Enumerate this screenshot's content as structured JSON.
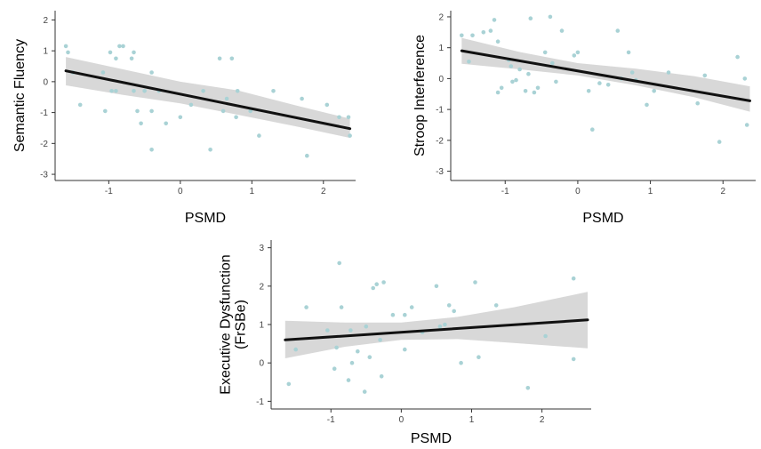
{
  "colors": {
    "point": "#a9d2d5",
    "fit_line": "#111111",
    "ci_band": "#d6d6d6",
    "axis": "#333333"
  },
  "chart_data": [
    {
      "type": "scatter",
      "xlabel": "PSMD",
      "ylabel": [
        "Semantic Fluency"
      ],
      "xlim": [
        -1.75,
        2.45
      ],
      "ylim": [
        -3.2,
        2.3
      ],
      "xticks": [
        -1,
        0,
        1,
        2
      ],
      "yticks": [
        -3,
        -2,
        -1,
        0,
        1,
        2
      ],
      "grid": false,
      "points": [
        [
          -1.6,
          1.15
        ],
        [
          -1.57,
          0.95
        ],
        [
          -1.5,
          0.3
        ],
        [
          -1.4,
          -0.75
        ],
        [
          -1.08,
          0.3
        ],
        [
          -1.05,
          -0.95
        ],
        [
          -0.98,
          0.95
        ],
        [
          -0.96,
          -0.3
        ],
        [
          -0.9,
          -0.3
        ],
        [
          -0.9,
          0.75
        ],
        [
          -0.85,
          1.15
        ],
        [
          -0.8,
          1.15
        ],
        [
          -0.68,
          0.75
        ],
        [
          -0.65,
          0.95
        ],
        [
          -0.65,
          -0.3
        ],
        [
          -0.6,
          -0.95
        ],
        [
          -0.55,
          -1.35
        ],
        [
          -0.5,
          -0.3
        ],
        [
          -0.4,
          0.3
        ],
        [
          -0.4,
          -0.95
        ],
        [
          -0.4,
          -2.2
        ],
        [
          -0.3,
          -0.3
        ],
        [
          -0.2,
          -1.35
        ],
        [
          0.0,
          -1.15
        ],
        [
          0.15,
          -0.75
        ],
        [
          0.32,
          -0.3
        ],
        [
          0.42,
          -2.2
        ],
        [
          0.55,
          0.75
        ],
        [
          0.6,
          -0.95
        ],
        [
          0.65,
          -0.55
        ],
        [
          0.72,
          0.75
        ],
        [
          0.78,
          -1.15
        ],
        [
          0.8,
          -0.3
        ],
        [
          0.98,
          -0.95
        ],
        [
          1.1,
          -1.75
        ],
        [
          1.3,
          -0.3
        ],
        [
          1.7,
          -0.55
        ],
        [
          1.77,
          -2.4
        ],
        [
          2.05,
          -0.75
        ],
        [
          2.22,
          -1.15
        ],
        [
          2.35,
          -1.15
        ],
        [
          2.37,
          -1.75
        ]
      ],
      "fit": {
        "x": [
          -1.6,
          2.37
        ],
        "y": [
          0.35,
          -1.52
        ]
      },
      "ci": {
        "x": [
          -1.6,
          -0.8,
          0.0,
          0.8,
          1.6,
          2.37
        ],
        "lower": [
          -0.12,
          -0.43,
          -0.7,
          -1.07,
          -1.44,
          -1.82
        ],
        "upper": [
          0.8,
          0.4,
          0.0,
          -0.28,
          -0.76,
          -1.2
        ]
      }
    },
    {
      "type": "scatter",
      "xlabel": "PSMD",
      "ylabel": [
        "Stroop Interference"
      ],
      "xlim": [
        -1.75,
        2.45
      ],
      "ylim": [
        -3.3,
        2.2
      ],
      "xticks": [
        -1,
        0,
        1,
        2
      ],
      "yticks": [
        -3,
        -2,
        -1,
        0,
        1,
        2
      ],
      "grid": false,
      "points": [
        [
          -1.6,
          1.4
        ],
        [
          -1.5,
          0.55
        ],
        [
          -1.45,
          1.4
        ],
        [
          -1.3,
          1.5
        ],
        [
          -1.2,
          1.55
        ],
        [
          -1.15,
          1.9
        ],
        [
          -1.1,
          1.2
        ],
        [
          -1.1,
          -0.45
        ],
        [
          -1.05,
          -0.3
        ],
        [
          -0.95,
          0.6
        ],
        [
          -0.92,
          0.4
        ],
        [
          -0.9,
          -0.1
        ],
        [
          -0.85,
          -0.05
        ],
        [
          -0.8,
          0.3
        ],
        [
          -0.72,
          -0.4
        ],
        [
          -0.68,
          0.15
        ],
        [
          -0.65,
          1.95
        ],
        [
          -0.6,
          -0.45
        ],
        [
          -0.55,
          -0.3
        ],
        [
          -0.45,
          0.85
        ],
        [
          -0.38,
          2.0
        ],
        [
          -0.35,
          0.5
        ],
        [
          -0.3,
          -0.1
        ],
        [
          -0.22,
          1.55
        ],
        [
          -0.05,
          0.75
        ],
        [
          0.0,
          0.85
        ],
        [
          0.15,
          -0.4
        ],
        [
          0.2,
          -1.65
        ],
        [
          0.3,
          -0.15
        ],
        [
          0.42,
          -0.2
        ],
        [
          0.55,
          1.55
        ],
        [
          0.6,
          0.0
        ],
        [
          0.7,
          0.85
        ],
        [
          0.75,
          0.2
        ],
        [
          0.8,
          -0.05
        ],
        [
          0.95,
          -0.85
        ],
        [
          1.05,
          -0.4
        ],
        [
          1.25,
          0.2
        ],
        [
          1.65,
          -0.8
        ],
        [
          1.75,
          0.1
        ],
        [
          1.95,
          -2.05
        ],
        [
          2.2,
          0.7
        ],
        [
          2.3,
          0.0
        ],
        [
          2.33,
          -1.5
        ]
      ],
      "fit": {
        "x": [
          -1.6,
          2.37
        ],
        "y": [
          0.9,
          -0.72
        ]
      },
      "ci": {
        "x": [
          -1.6,
          -0.8,
          0.0,
          0.8,
          1.6,
          2.37
        ],
        "lower": [
          0.48,
          0.3,
          0.1,
          -0.22,
          -0.6,
          -1.07
        ],
        "upper": [
          1.32,
          0.86,
          0.5,
          0.32,
          0.08,
          -0.25
        ]
      }
    },
    {
      "type": "scatter",
      "xlabel": "PSMD",
      "ylabel": [
        "Executive Dysfunction",
        "(FrSBe)"
      ],
      "xlim": [
        -1.85,
        2.7
      ],
      "ylim": [
        -1.2,
        3.2
      ],
      "xticks": [
        -1,
        0,
        1,
        2
      ],
      "yticks": [
        -1,
        0,
        1,
        2,
        3
      ],
      "grid": false,
      "points": [
        [
          -1.6,
          -0.55
        ],
        [
          -1.5,
          0.35
        ],
        [
          -1.35,
          1.45
        ],
        [
          -1.05,
          0.85
        ],
        [
          -0.95,
          -0.15
        ],
        [
          -0.92,
          0.4
        ],
        [
          -0.88,
          2.6
        ],
        [
          -0.85,
          1.45
        ],
        [
          -0.75,
          -0.45
        ],
        [
          -0.72,
          0.85
        ],
        [
          -0.7,
          0.0
        ],
        [
          -0.62,
          0.3
        ],
        [
          -0.52,
          -0.75
        ],
        [
          -0.5,
          0.95
        ],
        [
          -0.45,
          0.15
        ],
        [
          -0.4,
          1.95
        ],
        [
          -0.35,
          2.05
        ],
        [
          -0.3,
          0.6
        ],
        [
          -0.28,
          -0.35
        ],
        [
          -0.25,
          2.1
        ],
        [
          -0.12,
          1.25
        ],
        [
          0.05,
          1.25
        ],
        [
          0.05,
          0.35
        ],
        [
          0.15,
          1.45
        ],
        [
          0.3,
          0.8
        ],
        [
          0.5,
          2.0
        ],
        [
          0.55,
          0.95
        ],
        [
          0.62,
          1.0
        ],
        [
          0.68,
          1.5
        ],
        [
          0.75,
          1.35
        ],
        [
          0.85,
          0.0
        ],
        [
          1.05,
          2.1
        ],
        [
          1.1,
          0.15
        ],
        [
          1.35,
          1.5
        ],
        [
          1.8,
          -0.65
        ],
        [
          2.05,
          0.7
        ],
        [
          2.45,
          2.2
        ],
        [
          2.45,
          0.1
        ]
      ],
      "fit": {
        "x": [
          -1.65,
          2.65
        ],
        "y": [
          0.6,
          1.12
        ]
      },
      "ci": {
        "x": [
          -1.65,
          -0.8,
          0.0,
          0.8,
          1.6,
          2.65
        ],
        "lower": [
          0.12,
          0.42,
          0.6,
          0.62,
          0.52,
          0.38
        ],
        "upper": [
          1.1,
          1.05,
          1.05,
          1.2,
          1.45,
          1.85
        ]
      }
    }
  ]
}
